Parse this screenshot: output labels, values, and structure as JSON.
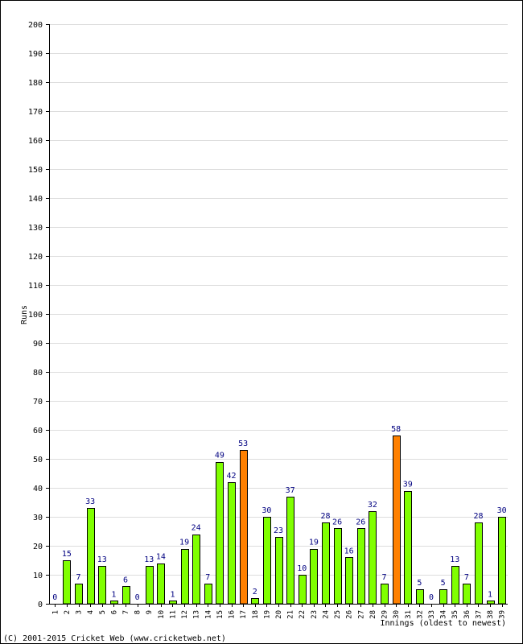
{
  "chart_data": {
    "type": "bar",
    "categories": [
      "1",
      "2",
      "3",
      "4",
      "5",
      "6",
      "7",
      "8",
      "9",
      "10",
      "11",
      "12",
      "13",
      "14",
      "15",
      "16",
      "17",
      "18",
      "19",
      "20",
      "21",
      "22",
      "23",
      "24",
      "25",
      "26",
      "27",
      "28",
      "29",
      "30",
      "31",
      "32",
      "33",
      "34",
      "35",
      "36",
      "37",
      "38",
      "39"
    ],
    "values": [
      0,
      15,
      7,
      33,
      13,
      1,
      6,
      0,
      13,
      14,
      1,
      19,
      24,
      7,
      49,
      42,
      53,
      2,
      30,
      23,
      37,
      10,
      19,
      28,
      26,
      16,
      26,
      32,
      7,
      58,
      39,
      5,
      0,
      5,
      13,
      7,
      28,
      1,
      30
    ],
    "highlighted": [
      "17",
      "30"
    ],
    "ylabel": "Runs",
    "xlabel": "Innings (oldest to newest)",
    "ylim": [
      0,
      200
    ],
    "ytick_step": 10,
    "grid": true,
    "colors": {
      "bar": "#80ff00",
      "highlight": "#ff8000",
      "bar_outline": "#000000",
      "value_label": "#000080",
      "grid": "#dddddd"
    }
  },
  "footer": "(C) 2001-2015 Cricket Web (www.cricketweb.net)"
}
